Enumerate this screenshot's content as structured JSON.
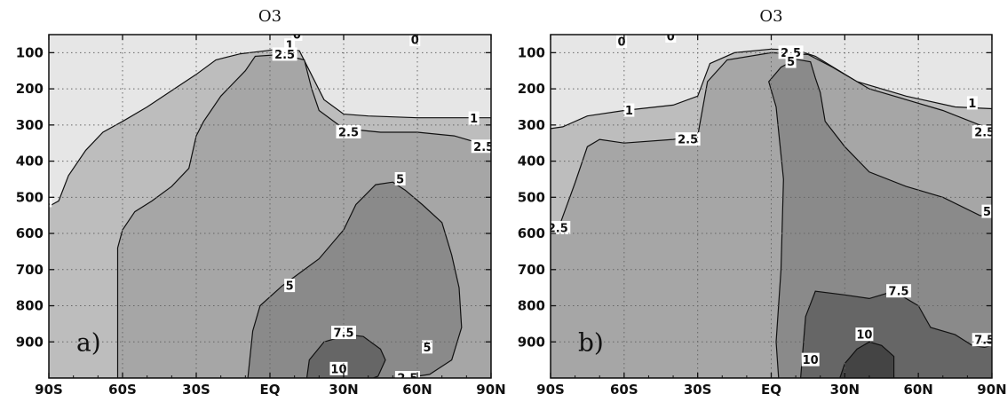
{
  "chart_data": [
    {
      "type": "contour",
      "title": "O3",
      "panel_label": "a)",
      "x_ticks": [
        "90S",
        "60S",
        "30S",
        "EQ",
        "30N",
        "60N",
        "90N"
      ],
      "y_ticks": [
        "100",
        "200",
        "300",
        "400",
        "500",
        "600",
        "700",
        "800",
        "900"
      ],
      "xlim": [
        -90,
        90
      ],
      "ylim": [
        1000,
        50
      ],
      "grid": true,
      "levels": [
        0,
        1,
        2.5,
        5,
        7.5,
        10
      ],
      "fill_colors": [
        "#e6e6e6",
        "#bdbdbd",
        "#a6a6a6",
        "#8a8a8a",
        "#666666",
        "#444444"
      ],
      "regions": [
        {
          "level": 1,
          "points": [
            [
              -90,
              1000
            ],
            [
              -90,
              525
            ],
            [
              -86,
              510
            ],
            [
              -82,
              440
            ],
            [
              -75,
              370
            ],
            [
              -68,
              320
            ],
            [
              -60,
              290
            ],
            [
              -50,
              250
            ],
            [
              -40,
              205
            ],
            [
              -30,
              160
            ],
            [
              -22,
              120
            ],
            [
              -12,
              103
            ],
            [
              -2,
              95
            ],
            [
              6,
              88
            ],
            [
              12,
              95
            ],
            [
              22,
              230
            ],
            [
              30,
              270
            ],
            [
              40,
              275
            ],
            [
              60,
              280
            ],
            [
              80,
              280
            ],
            [
              90,
              280
            ],
            [
              90,
              1000
            ]
          ]
        },
        {
          "level": 2.5,
          "points": [
            [
              -62,
              1000
            ],
            [
              -62,
              640
            ],
            [
              -60,
              590
            ],
            [
              -55,
              540
            ],
            [
              -48,
              510
            ],
            [
              -40,
              470
            ],
            [
              -33,
              420
            ],
            [
              -30,
              330
            ],
            [
              -27,
              290
            ],
            [
              -20,
              220
            ],
            [
              -10,
              150
            ],
            [
              -6,
              110
            ],
            [
              5,
              105
            ],
            [
              14,
              120
            ],
            [
              17,
              200
            ],
            [
              20,
              260
            ],
            [
              30,
              310
            ],
            [
              45,
              320
            ],
            [
              60,
              320
            ],
            [
              75,
              330
            ],
            [
              90,
              360
            ],
            [
              90,
              1000
            ]
          ]
        },
        {
          "level": 5,
          "points": [
            [
              -9,
              1000
            ],
            [
              -7,
              870
            ],
            [
              -4,
              800
            ],
            [
              5,
              745
            ],
            [
              20,
              670
            ],
            [
              30,
              590
            ],
            [
              35,
              520
            ],
            [
              43,
              465
            ],
            [
              50,
              458
            ],
            [
              55,
              480
            ],
            [
              62,
              520
            ],
            [
              70,
              570
            ],
            [
              74,
              660
            ],
            [
              77,
              750
            ],
            [
              78,
              860
            ],
            [
              74,
              950
            ],
            [
              65,
              990
            ],
            [
              55,
              1000
            ]
          ]
        },
        {
          "level": 7.5,
          "points": [
            [
              15,
              1000
            ],
            [
              16,
              950
            ],
            [
              22,
              900
            ],
            [
              32,
              880
            ],
            [
              38,
              885
            ],
            [
              45,
              920
            ],
            [
              47,
              950
            ],
            [
              44,
              995
            ],
            [
              42,
              1000
            ]
          ]
        }
      ],
      "labels": [
        {
          "text": "0",
          "lon": 11,
          "p": 50
        },
        {
          "text": "0",
          "lon": 59,
          "p": 65
        },
        {
          "text": "1",
          "lon": 8,
          "p": 80
        },
        {
          "text": "2.5",
          "lon": 6,
          "p": 105
        },
        {
          "text": "1",
          "lon": -91,
          "p": 510
        },
        {
          "text": "1",
          "lon": 83,
          "p": 282
        },
        {
          "text": "2.5",
          "lon": 32,
          "p": 320
        },
        {
          "text": "2.5",
          "lon": 87,
          "p": 360
        },
        {
          "text": "5",
          "lon": 53,
          "p": 450
        },
        {
          "text": "5",
          "lon": 8,
          "p": 745
        },
        {
          "text": "7.5",
          "lon": 30,
          "p": 875
        },
        {
          "text": "5",
          "lon": 64,
          "p": 915
        },
        {
          "text": "10",
          "lon": 28,
          "p": 975
        },
        {
          "text": "2.5",
          "lon": 56,
          "p": 1000
        }
      ]
    },
    {
      "type": "contour",
      "title": "O3",
      "panel_label": "b)",
      "x_ticks": [
        "90S",
        "60S",
        "30S",
        "EQ",
        "30N",
        "60N",
        "90N"
      ],
      "y_ticks": [
        "100",
        "200",
        "300",
        "400",
        "500",
        "600",
        "700",
        "800",
        "900"
      ],
      "xlim": [
        -90,
        90
      ],
      "ylim": [
        1000,
        50
      ],
      "grid": true,
      "levels": [
        0,
        1,
        2.5,
        5,
        7.5,
        10
      ],
      "fill_colors": [
        "#e6e6e6",
        "#bdbdbd",
        "#a6a6a6",
        "#8a8a8a",
        "#666666",
        "#444444"
      ],
      "regions": [
        {
          "level": 1,
          "points": [
            [
              -90,
              1000
            ],
            [
              -90,
              310
            ],
            [
              -85,
              305
            ],
            [
              -75,
              275
            ],
            [
              -60,
              260
            ],
            [
              -40,
              245
            ],
            [
              -30,
              220
            ],
            [
              -25,
              130
            ],
            [
              -15,
              100
            ],
            [
              0,
              90
            ],
            [
              10,
              92
            ],
            [
              18,
              110
            ],
            [
              35,
              180
            ],
            [
              55,
              220
            ],
            [
              75,
              250
            ],
            [
              90,
              255
            ],
            [
              90,
              1000
            ]
          ]
        },
        {
          "level": 2.5,
          "points": [
            [
              -90,
              1000
            ],
            [
              -90,
              600
            ],
            [
              -87,
              590
            ],
            [
              -80,
              460
            ],
            [
              -75,
              360
            ],
            [
              -70,
              340
            ],
            [
              -60,
              350
            ],
            [
              -40,
              340
            ],
            [
              -30,
              330
            ],
            [
              -26,
              180
            ],
            [
              -18,
              120
            ],
            [
              0,
              100
            ],
            [
              15,
              105
            ],
            [
              25,
              140
            ],
            [
              40,
              200
            ],
            [
              55,
              230
            ],
            [
              70,
              260
            ],
            [
              85,
              300
            ],
            [
              90,
              310
            ],
            [
              90,
              1000
            ]
          ]
        },
        {
          "level": 5,
          "points": [
            [
              3,
              1000
            ],
            [
              2,
              900
            ],
            [
              4,
              700
            ],
            [
              5,
              450
            ],
            [
              2,
              250
            ],
            [
              -1,
              180
            ],
            [
              4,
              140
            ],
            [
              10,
              118
            ],
            [
              16,
              125
            ],
            [
              18,
              170
            ],
            [
              20,
              210
            ],
            [
              22,
              290
            ],
            [
              30,
              360
            ],
            [
              40,
              430
            ],
            [
              55,
              470
            ],
            [
              70,
              500
            ],
            [
              85,
              550
            ],
            [
              90,
              555
            ],
            [
              90,
              1000
            ]
          ]
        },
        {
          "level": 7.5,
          "points": [
            [
              12,
              1000
            ],
            [
              14,
              830
            ],
            [
              18,
              760
            ],
            [
              30,
              770
            ],
            [
              40,
              780
            ],
            [
              50,
              760
            ],
            [
              60,
              800
            ],
            [
              65,
              860
            ],
            [
              75,
              880
            ],
            [
              82,
              910
            ],
            [
              87,
              915
            ],
            [
              90,
              910
            ],
            [
              90,
              1000
            ]
          ]
        },
        {
          "level": 10,
          "points": [
            [
              28,
              1000
            ],
            [
              30,
              960
            ],
            [
              35,
              920
            ],
            [
              40,
              900
            ],
            [
              45,
              910
            ],
            [
              50,
              940
            ],
            [
              50,
              1000
            ]
          ]
        }
      ],
      "labels": [
        {
          "text": "0",
          "lon": -61,
          "p": 70
        },
        {
          "text": "0",
          "lon": -41,
          "p": 55
        },
        {
          "text": "2.5",
          "lon": 8,
          "p": 100
        },
        {
          "text": "5",
          "lon": 8,
          "p": 125
        },
        {
          "text": "1",
          "lon": -58,
          "p": 260
        },
        {
          "text": "1",
          "lon": 82,
          "p": 240
        },
        {
          "text": "2.5",
          "lon": -34,
          "p": 340
        },
        {
          "text": "2.5",
          "lon": 87,
          "p": 320
        },
        {
          "text": "5",
          "lon": 88,
          "p": 540
        },
        {
          "text": "2.5",
          "lon": -87,
          "p": 585
        },
        {
          "text": "7.5",
          "lon": 52,
          "p": 760
        },
        {
          "text": "7.5",
          "lon": 87,
          "p": 895
        },
        {
          "text": "10",
          "lon": 38,
          "p": 880
        },
        {
          "text": "10",
          "lon": 16,
          "p": 950
        }
      ]
    }
  ]
}
